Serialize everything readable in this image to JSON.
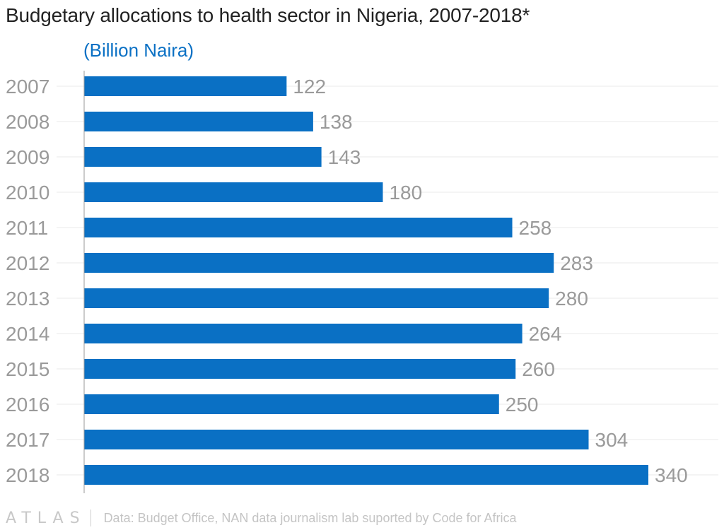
{
  "title": "Budgetary allocations to health sector in Nigeria, 2007-2018*",
  "subtitle": "(Billion Naira)",
  "footer": {
    "logo": "ATLAS",
    "source": "Data: Budget Office, NAN data journalism lab suported by Code for Africa"
  },
  "colors": {
    "bar": "#0a70c4",
    "label": "#9a9a9a",
    "grid": "#e8e8e8"
  },
  "chart_data": {
    "type": "bar",
    "orientation": "horizontal",
    "categories": [
      "2007",
      "2008",
      "2009",
      "2010",
      "2011",
      "2012",
      "2013",
      "2014",
      "2015",
      "2016",
      "2017",
      "2018"
    ],
    "values": [
      122,
      138,
      143,
      180,
      258,
      283,
      280,
      264,
      260,
      250,
      304,
      340
    ],
    "title": "Budgetary allocations to health sector in Nigeria, 2007-2018*",
    "subtitle": "(Billion Naira)",
    "xlabel": "",
    "ylabel": "",
    "xlim": [
      0,
      340
    ],
    "grid": true,
    "data_labels": true
  }
}
